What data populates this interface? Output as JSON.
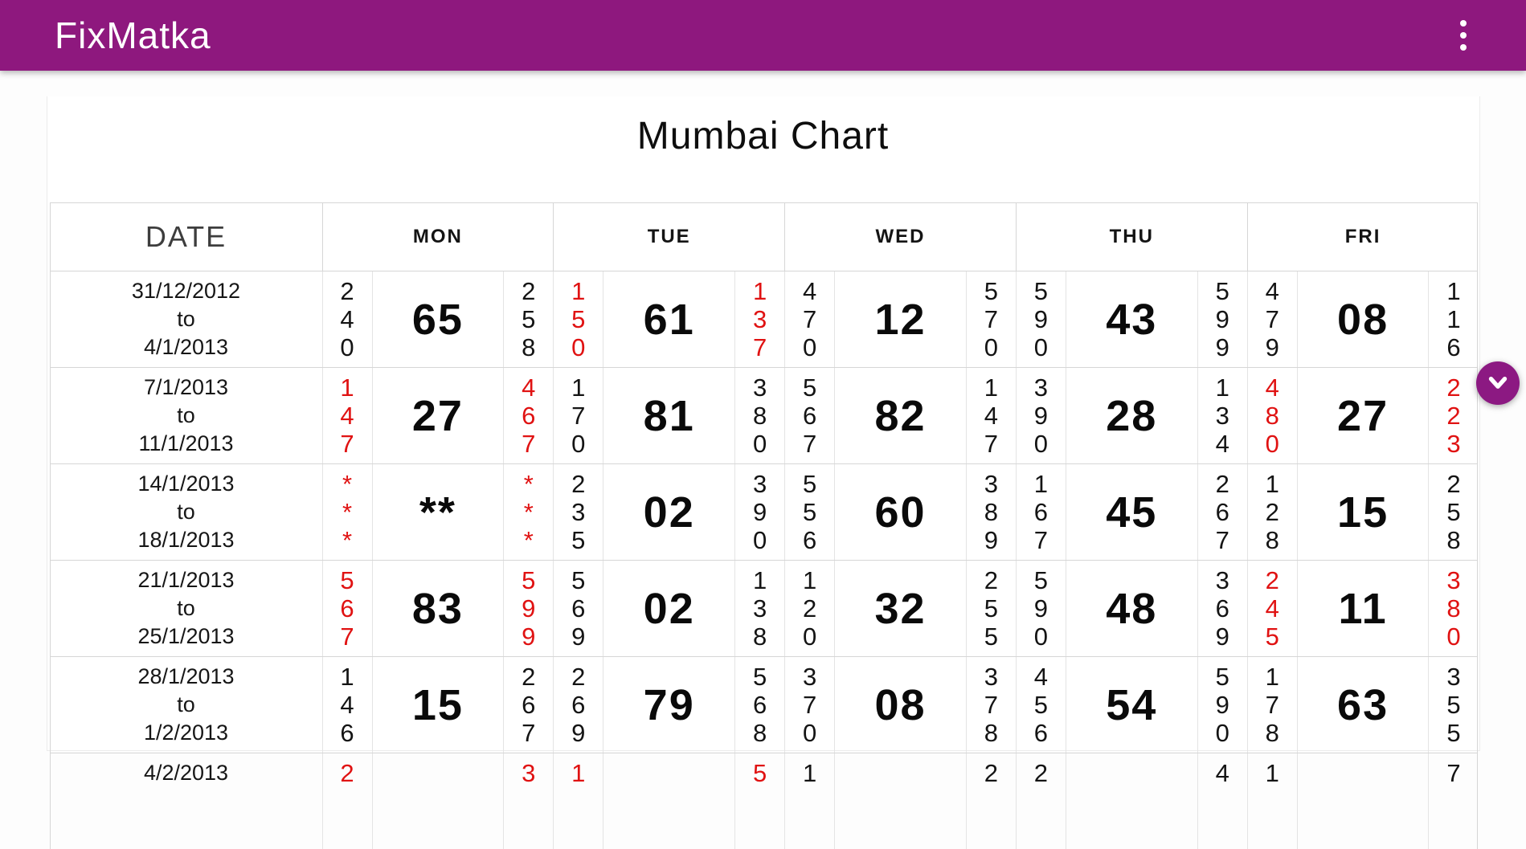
{
  "app_bar": {
    "title": "FixMatka",
    "menu_icon": "vertical-dots-icon"
  },
  "page": {
    "title": "Mumbai Chart"
  },
  "colors": {
    "primary_purple": "#8e187e",
    "result_red": "#e01212",
    "text_black": "#141414"
  },
  "table": {
    "columns": [
      "DATE",
      "MON",
      "TUE",
      "WED",
      "THU",
      "FRI"
    ],
    "rows": [
      {
        "date_lines": [
          "31/12/2012",
          "to",
          "4/1/2013"
        ],
        "days": [
          {
            "open": [
              "2",
              "4",
              "0"
            ],
            "jodi": "65",
            "close": [
              "2",
              "5",
              "8"
            ],
            "red": false
          },
          {
            "open": [
              "1",
              "5",
              "0"
            ],
            "jodi": "61",
            "close": [
              "1",
              "3",
              "7"
            ],
            "red": true
          },
          {
            "open": [
              "4",
              "7",
              "0"
            ],
            "jodi": "12",
            "close": [
              "5",
              "7",
              "0"
            ],
            "red": false
          },
          {
            "open": [
              "5",
              "9",
              "0"
            ],
            "jodi": "43",
            "close": [
              "5",
              "9",
              "9"
            ],
            "red": false
          },
          {
            "open": [
              "4",
              "7",
              "9"
            ],
            "jodi": "08",
            "close": [
              "1",
              "1",
              "6"
            ],
            "red": false
          }
        ]
      },
      {
        "date_lines": [
          "7/1/2013",
          "to",
          "11/1/2013"
        ],
        "days": [
          {
            "open": [
              "1",
              "4",
              "7"
            ],
            "jodi": "27",
            "close": [
              "4",
              "6",
              "7"
            ],
            "red": true
          },
          {
            "open": [
              "1",
              "7",
              "0"
            ],
            "jodi": "81",
            "close": [
              "3",
              "8",
              "0"
            ],
            "red": false
          },
          {
            "open": [
              "5",
              "6",
              "7"
            ],
            "jodi": "82",
            "close": [
              "1",
              "4",
              "7"
            ],
            "red": false
          },
          {
            "open": [
              "3",
              "9",
              "0"
            ],
            "jodi": "28",
            "close": [
              "1",
              "3",
              "4"
            ],
            "red": false
          },
          {
            "open": [
              "4",
              "8",
              "0"
            ],
            "jodi": "27",
            "close": [
              "2",
              "2",
              "3"
            ],
            "red": true
          }
        ]
      },
      {
        "date_lines": [
          "14/1/2013",
          "to",
          "18/1/2013"
        ],
        "days": [
          {
            "open": [
              "*",
              "*",
              "*"
            ],
            "jodi": "**",
            "close": [
              "*",
              "*",
              "*"
            ],
            "red": true
          },
          {
            "open": [
              "2",
              "3",
              "5"
            ],
            "jodi": "02",
            "close": [
              "3",
              "9",
              "0"
            ],
            "red": false
          },
          {
            "open": [
              "5",
              "5",
              "6"
            ],
            "jodi": "60",
            "close": [
              "3",
              "8",
              "9"
            ],
            "red": false
          },
          {
            "open": [
              "1",
              "6",
              "7"
            ],
            "jodi": "45",
            "close": [
              "2",
              "6",
              "7"
            ],
            "red": false
          },
          {
            "open": [
              "1",
              "2",
              "8"
            ],
            "jodi": "15",
            "close": [
              "2",
              "5",
              "8"
            ],
            "red": false
          }
        ]
      },
      {
        "date_lines": [
          "21/1/2013",
          "to",
          "25/1/2013"
        ],
        "days": [
          {
            "open": [
              "5",
              "6",
              "7"
            ],
            "jodi": "83",
            "close": [
              "5",
              "9",
              "9"
            ],
            "red": true
          },
          {
            "open": [
              "5",
              "6",
              "9"
            ],
            "jodi": "02",
            "close": [
              "1",
              "3",
              "8"
            ],
            "red": false
          },
          {
            "open": [
              "1",
              "2",
              "0"
            ],
            "jodi": "32",
            "close": [
              "2",
              "5",
              "5"
            ],
            "red": false
          },
          {
            "open": [
              "5",
              "9",
              "0"
            ],
            "jodi": "48",
            "close": [
              "3",
              "6",
              "9"
            ],
            "red": false
          },
          {
            "open": [
              "2",
              "4",
              "5"
            ],
            "jodi": "11",
            "close": [
              "3",
              "8",
              "0"
            ],
            "red": true
          }
        ]
      },
      {
        "date_lines": [
          "28/1/2013",
          "to",
          "1/2/2013"
        ],
        "days": [
          {
            "open": [
              "1",
              "4",
              "6"
            ],
            "jodi": "15",
            "close": [
              "2",
              "6",
              "7"
            ],
            "red": false
          },
          {
            "open": [
              "2",
              "6",
              "9"
            ],
            "jodi": "79",
            "close": [
              "5",
              "6",
              "8"
            ],
            "red": false
          },
          {
            "open": [
              "3",
              "7",
              "0"
            ],
            "jodi": "08",
            "close": [
              "3",
              "7",
              "8"
            ],
            "red": false
          },
          {
            "open": [
              "4",
              "5",
              "6"
            ],
            "jodi": "54",
            "close": [
              "5",
              "9",
              "0"
            ],
            "red": false
          },
          {
            "open": [
              "1",
              "7",
              "8"
            ],
            "jodi": "63",
            "close": [
              "3",
              "5",
              "5"
            ],
            "red": false
          }
        ]
      },
      {
        "date_lines": [
          "4/2/2013",
          "",
          ""
        ],
        "days": [
          {
            "open": [
              "2",
              "",
              ""
            ],
            "jodi": "",
            "close": [
              "3",
              "",
              ""
            ],
            "red": true
          },
          {
            "open": [
              "1",
              "",
              ""
            ],
            "jodi": "",
            "close": [
              "5",
              "",
              ""
            ],
            "red": true
          },
          {
            "open": [
              "1",
              "",
              ""
            ],
            "jodi": "",
            "close": [
              "2",
              "",
              ""
            ],
            "red": false
          },
          {
            "open": [
              "2",
              "",
              ""
            ],
            "jodi": "",
            "close": [
              "4",
              "",
              ""
            ],
            "red": false
          },
          {
            "open": [
              "1",
              "",
              ""
            ],
            "jodi": "",
            "close": [
              "7",
              "",
              ""
            ],
            "red": false
          }
        ]
      }
    ]
  },
  "scroll_button": {
    "icon": "chevron-down-icon"
  }
}
